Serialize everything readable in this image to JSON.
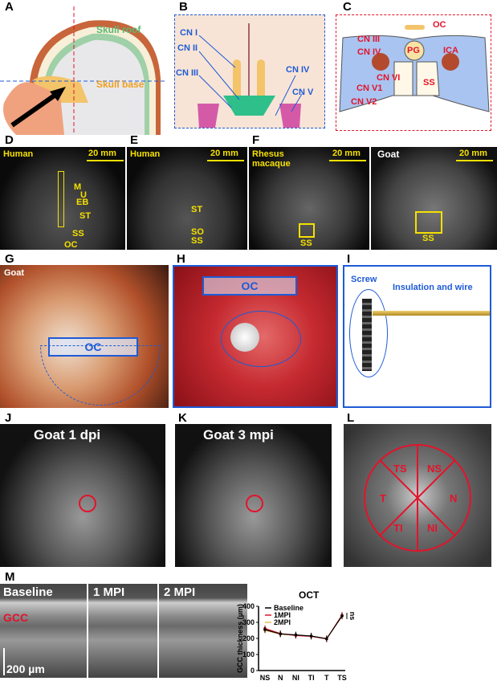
{
  "panels": {
    "A": {
      "letter": "A",
      "labels": [
        "Skull roof",
        "Skull base"
      ]
    },
    "B": {
      "letter": "B",
      "labels": [
        "CN I",
        "CN II",
        "CN III",
        "CN IV",
        "CN V"
      ]
    },
    "C": {
      "letter": "C",
      "labels": [
        "OC",
        "CN III",
        "CN IV",
        "PG",
        "ICA",
        "CN VI",
        "CN V1",
        "CN V2",
        "SS"
      ]
    },
    "D": {
      "letter": "D",
      "species": "Human",
      "scale": "20 mm",
      "labels": [
        "M",
        "U",
        "EB",
        "ST",
        "SS",
        "OC"
      ]
    },
    "E": {
      "letter": "E",
      "species": "Human",
      "scale": "20 mm",
      "labels": [
        "ST",
        "SO",
        "SS"
      ]
    },
    "F": {
      "letter": "F",
      "species": "Rhesus macaque",
      "scale": "20 mm",
      "labels": [
        "SS"
      ]
    },
    "F2": {
      "species": "Goat",
      "scale": "20 mm",
      "labels": [
        "SS"
      ]
    },
    "G": {
      "letter": "G",
      "species": "Goat",
      "labels": [
        "OC"
      ]
    },
    "H": {
      "letter": "H",
      "labels": [
        "OC"
      ]
    },
    "I": {
      "letter": "I",
      "labels": [
        "Screw",
        "Insulation and wire"
      ]
    },
    "J": {
      "letter": "J",
      "title": "Goat 1 dpi"
    },
    "K": {
      "letter": "K",
      "title": "Goat 3 mpi"
    },
    "L": {
      "letter": "L",
      "labels": [
        "TS",
        "NS",
        "T",
        "N",
        "TI",
        "NI"
      ]
    },
    "M": {
      "letter": "M",
      "oct_labels": [
        "Baseline",
        "1 MPI",
        "2 MPI"
      ],
      "gcc": "GCC",
      "scale": "200 µm"
    }
  },
  "chart_data": {
    "type": "line",
    "title": "OCT",
    "xlabel": "",
    "ylabel": "GCC thickness (µm)",
    "categories": [
      "NS",
      "N",
      "NI",
      "TI",
      "T",
      "TS"
    ],
    "ylim": [
      0,
      400
    ],
    "yticks": [
      0,
      100,
      200,
      300,
      400
    ],
    "legend": "top-left",
    "annotation": "ns",
    "series": [
      {
        "name": "Baseline",
        "color": "#000000",
        "values": [
          255,
          228,
          222,
          215,
          198,
          340
        ]
      },
      {
        "name": "1MPI",
        "color": "#e3132b",
        "values": [
          262,
          230,
          218,
          213,
          197,
          345
        ]
      },
      {
        "name": "2MPI",
        "color": "#f0b860",
        "values": [
          250,
          226,
          220,
          214,
          199,
          338
        ]
      }
    ]
  }
}
